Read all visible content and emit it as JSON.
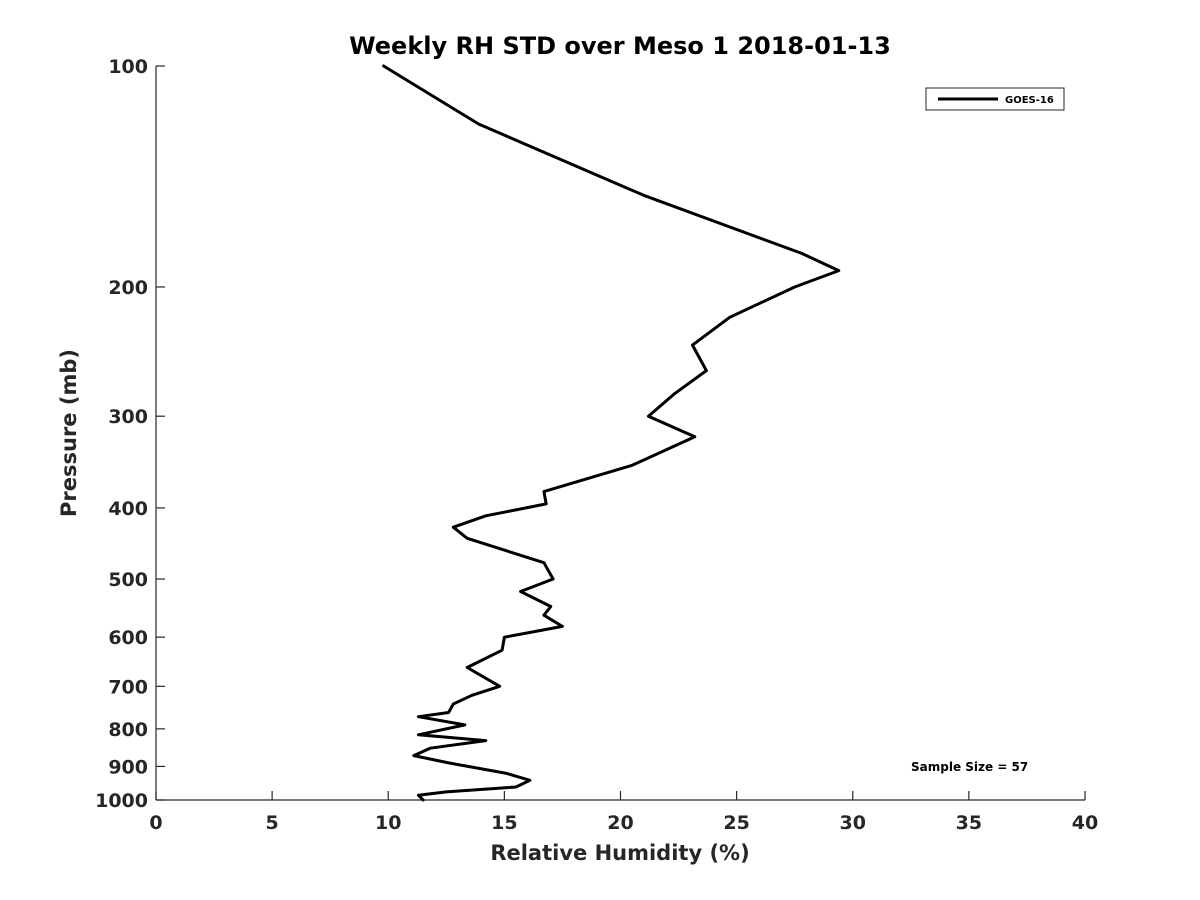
{
  "chart_data": {
    "type": "line",
    "title": "Weekly RH STD over Meso 1 2018-01-13",
    "xlabel": "Relative Humidity (%)",
    "ylabel": "Pressure (mb)",
    "xlim": [
      0,
      40
    ],
    "ylim": [
      1000,
      100
    ],
    "y_scale": "log",
    "y_reversed": true,
    "grid": false,
    "x_ticks": [
      0,
      5,
      10,
      15,
      20,
      25,
      30,
      35,
      40
    ],
    "x_tick_labels": [
      "0",
      "5",
      "10",
      "15",
      "20",
      "25",
      "30",
      "35",
      "40"
    ],
    "y_ticks": [
      100,
      200,
      300,
      400,
      500,
      600,
      700,
      800,
      900,
      1000
    ],
    "y_tick_labels": [
      "100",
      "200",
      "300",
      "400",
      "500",
      "600",
      "700",
      "800",
      "900",
      "1000"
    ],
    "legend_position": "top-right",
    "annotation": "Sample Size = 57",
    "series": [
      {
        "name": "GOES-16",
        "color": "#000000",
        "x": [
          9.8,
          13.9,
          21.0,
          27.8,
          29.4,
          27.5,
          24.7,
          23.1,
          23.7,
          22.3,
          21.2,
          23.2,
          20.5,
          16.7,
          16.8,
          14.2,
          12.8,
          13.4,
          16.7,
          17.1,
          15.7,
          17.0,
          16.7,
          17.5,
          15.0,
          14.9,
          13.4,
          14.8,
          13.6,
          12.8,
          12.6,
          11.3,
          13.3,
          11.3,
          14.2,
          11.8,
          11.1,
          12.6,
          15.1,
          16.1,
          15.5,
          12.5,
          11.3,
          11.5
        ],
        "y": [
          100,
          120,
          150,
          180,
          190,
          200,
          220,
          240,
          260,
          280,
          300,
          320,
          350,
          380,
          395,
          410,
          425,
          440,
          475,
          500,
          520,
          545,
          560,
          580,
          600,
          625,
          660,
          700,
          720,
          740,
          760,
          770,
          790,
          815,
          830,
          850,
          870,
          890,
          920,
          940,
          960,
          975,
          985,
          1000
        ]
      }
    ]
  }
}
